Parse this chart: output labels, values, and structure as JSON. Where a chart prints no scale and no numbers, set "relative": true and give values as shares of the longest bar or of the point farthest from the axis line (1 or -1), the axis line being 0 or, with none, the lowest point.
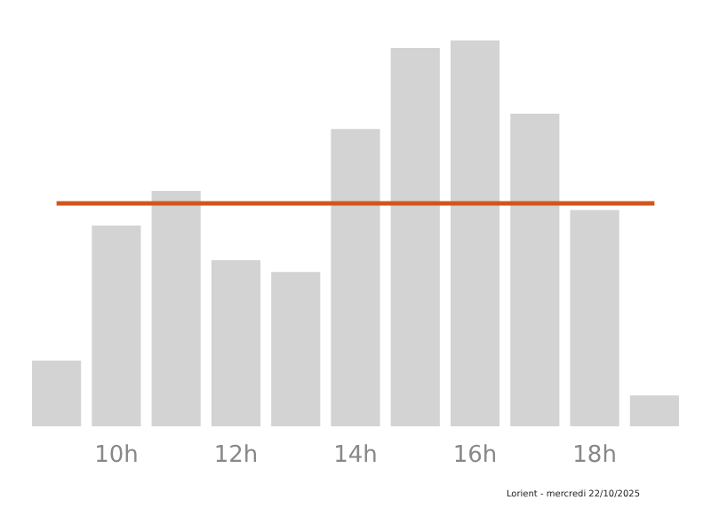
{
  "chart_data": {
    "type": "bar",
    "relative": true,
    "categories": [
      null,
      "10h",
      null,
      "12h",
      null,
      "14h",
      null,
      "16h",
      null,
      "18h",
      null
    ],
    "values": [
      0.17,
      0.52,
      0.61,
      0.43,
      0.4,
      0.77,
      0.98,
      1,
      0.81,
      0.56,
      0.08
    ],
    "color": "#d3d3d3",
    "ref_lines": [
      {
        "axis": "y",
        "value": 0.58,
        "color": "#d0561c",
        "line_style": "solid"
      }
    ],
    "annotations": [
      "Lorient - mercredi 22/10/2025"
    ]
  }
}
